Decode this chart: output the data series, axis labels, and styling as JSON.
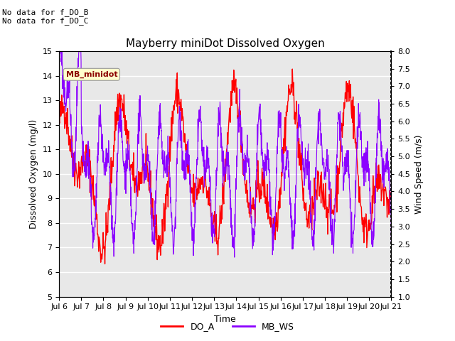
{
  "title": "Mayberry miniDot Dissolved Oxygen",
  "xlabel": "Time",
  "ylabel_left": "Dissolved Oxygen (mg/l)",
  "ylabel_right": "Wind Speed (m/s)",
  "ylim_left": [
    5.0,
    15.0
  ],
  "ylim_right": [
    1.0,
    8.0
  ],
  "yticks_left": [
    5.0,
    6.0,
    7.0,
    8.0,
    9.0,
    10.0,
    11.0,
    12.0,
    13.0,
    14.0,
    15.0
  ],
  "yticks_right": [
    1.0,
    1.5,
    2.0,
    2.5,
    3.0,
    3.5,
    4.0,
    4.5,
    5.0,
    5.5,
    6.0,
    6.5,
    7.0,
    7.5,
    8.0
  ],
  "annotation_text": "No data for f_DO_B\nNo data for f_DO_C",
  "legend_label_text": "MB_minidot",
  "legend_items": [
    "DO_A",
    "MB_WS"
  ],
  "legend_colors": [
    "#ff0000",
    "#8b00ff"
  ],
  "line_color_DOA": "#ff0000",
  "line_color_MBWS": "#8b00ff",
  "bg_color": "#e8e8e8",
  "grid_color": "#ffffff",
  "title_fontsize": 11,
  "label_fontsize": 9,
  "tick_fontsize": 8,
  "annotation_fontsize": 8,
  "x_tick_labels": [
    "Jul 6",
    "Jul 7",
    "Jul 8",
    "Jul 9",
    "Jul 10",
    "Jul 11",
    "Jul 12",
    "Jul 13",
    "Jul 14",
    "Jul 15",
    "Jul 16",
    "Jul 17",
    "Jul 18",
    "Jul 19",
    "Jul 20",
    "Jul 21"
  ]
}
